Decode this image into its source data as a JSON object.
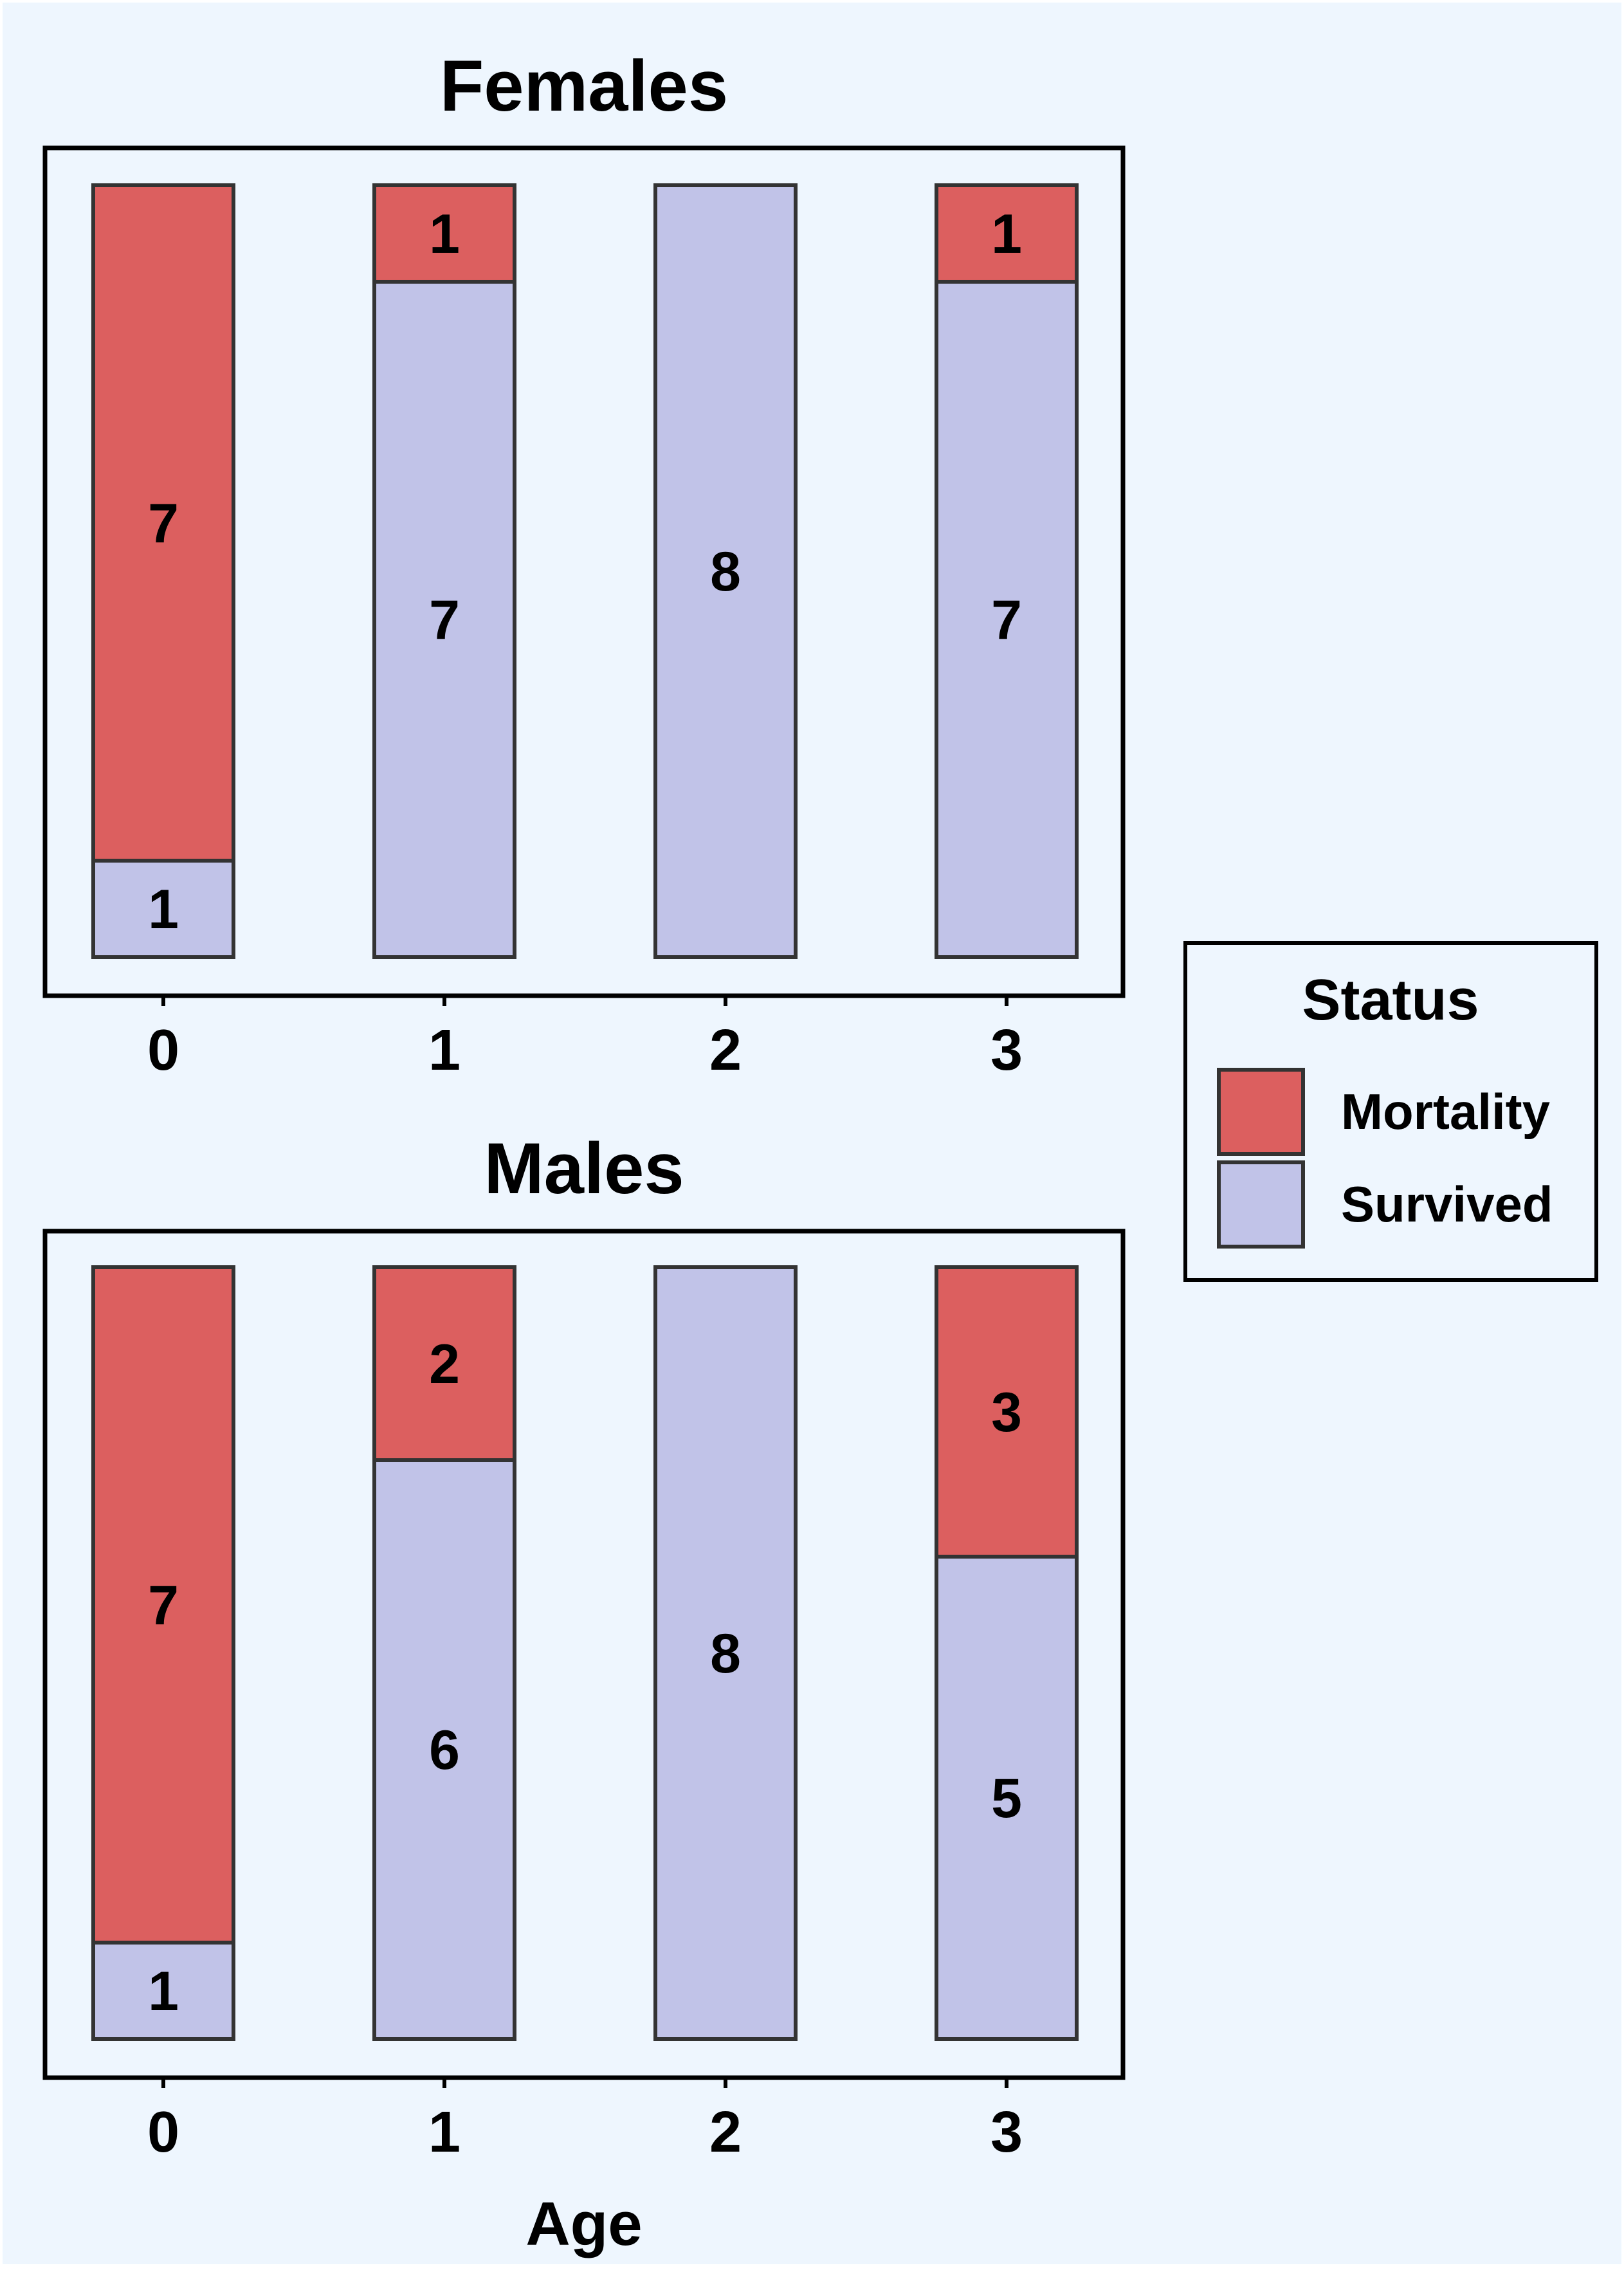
{
  "colors": {
    "background": "#eef6fe",
    "mortality": "#dc5f5f",
    "survived": "#c1c3e8",
    "bar_stroke": "#333333",
    "frame": "#000000"
  },
  "chart_data": [
    {
      "type": "bar",
      "stacked": true,
      "title": "Females",
      "xlabel": "",
      "ylabel": "",
      "categories": [
        "0",
        "1",
        "2",
        "3"
      ],
      "series": [
        {
          "name": "Survived",
          "values": [
            1,
            7,
            8,
            7
          ]
        },
        {
          "name": "Mortality",
          "values": [
            7,
            1,
            0,
            1
          ]
        }
      ],
      "bar_labels": [
        {
          "category": "0",
          "series": "Survived",
          "text": "1"
        },
        {
          "category": "0",
          "series": "Mortality",
          "text": "7"
        },
        {
          "category": "1",
          "series": "Survived",
          "text": "7"
        },
        {
          "category": "1",
          "series": "Mortality",
          "text": "1"
        },
        {
          "category": "2",
          "series": "Survived",
          "text": "8"
        },
        {
          "category": "3",
          "series": "Survived",
          "text": "7"
        },
        {
          "category": "3",
          "series": "Mortality",
          "text": "1"
        }
      ],
      "ylim": [
        0,
        8
      ],
      "grid": false,
      "y_ticks_shown": false
    },
    {
      "type": "bar",
      "stacked": true,
      "title": "Males",
      "xlabel": "Age",
      "ylabel": "",
      "categories": [
        "0",
        "1",
        "2",
        "3"
      ],
      "series": [
        {
          "name": "Survived",
          "values": [
            1,
            6,
            8,
            5
          ]
        },
        {
          "name": "Mortality",
          "values": [
            7,
            2,
            0,
            3
          ]
        }
      ],
      "bar_labels": [
        {
          "category": "0",
          "series": "Survived",
          "text": "1"
        },
        {
          "category": "0",
          "series": "Mortality",
          "text": "7"
        },
        {
          "category": "1",
          "series": "Survived",
          "text": "6"
        },
        {
          "category": "1",
          "series": "Mortality",
          "text": "2"
        },
        {
          "category": "2",
          "series": "Survived",
          "text": "8"
        },
        {
          "category": "3",
          "series": "Survived",
          "text": "5"
        },
        {
          "category": "3",
          "series": "Mortality",
          "text": "3"
        }
      ],
      "ylim": [
        0,
        8
      ],
      "grid": false,
      "y_ticks_shown": false
    }
  ],
  "legend": {
    "title": "Status",
    "position": "right",
    "items": [
      {
        "label": "Mortality",
        "color": "#dc5f5f"
      },
      {
        "label": "Survived",
        "color": "#c1c3e8"
      }
    ]
  }
}
